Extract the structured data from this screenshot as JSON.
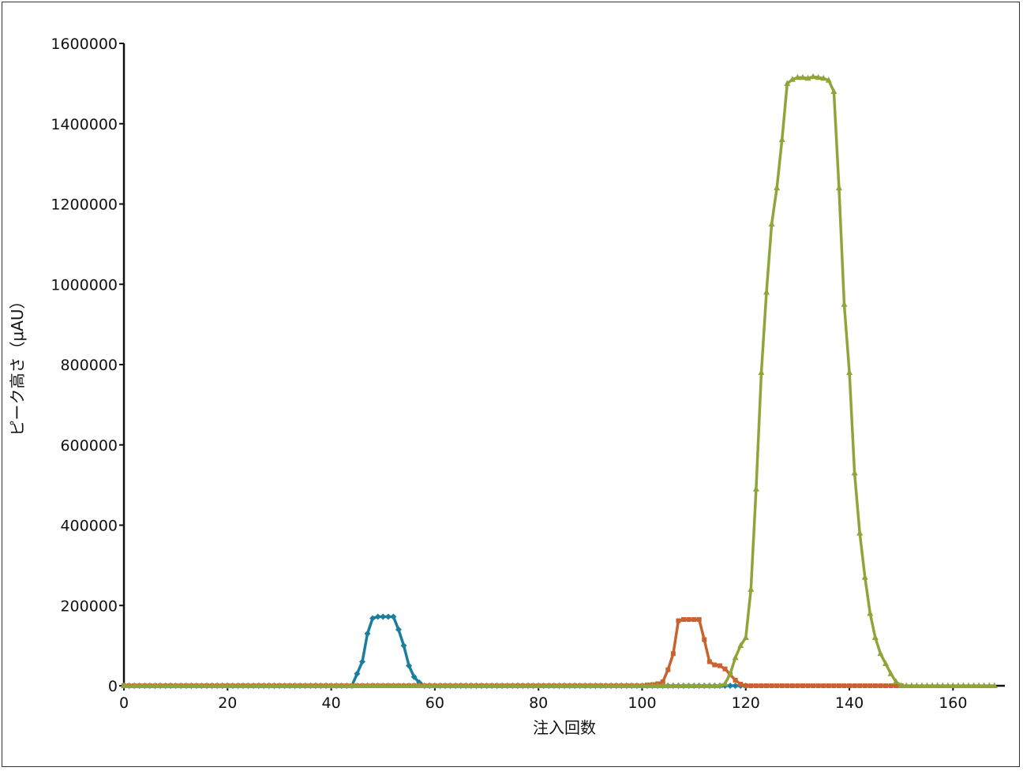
{
  "chart_data": {
    "type": "line",
    "xlabel": "注入回数",
    "ylabel": "ピーク高さ（μAU）",
    "xlim": [
      0,
      170
    ],
    "ylim": [
      0,
      1600000
    ],
    "xticks": [
      0,
      20,
      40,
      60,
      80,
      100,
      120,
      140,
      160
    ],
    "yticks": [
      0,
      200000,
      400000,
      600000,
      800000,
      1000000,
      1200000,
      1400000,
      1600000
    ],
    "grid": false,
    "legend": "none",
    "series": [
      {
        "color": "#1a7f9c",
        "marker": "diamond",
        "points": [
          [
            0,
            0
          ],
          [
            44,
            0
          ],
          [
            45,
            30000
          ],
          [
            46,
            60000
          ],
          [
            47,
            130000
          ],
          [
            48,
            168000
          ],
          [
            49,
            172000
          ],
          [
            50,
            172000
          ],
          [
            51,
            172000
          ],
          [
            52,
            172000
          ],
          [
            53,
            140000
          ],
          [
            54,
            100000
          ],
          [
            55,
            50000
          ],
          [
            56,
            22000
          ],
          [
            57,
            8000
          ],
          [
            58,
            0
          ],
          [
            60,
            0
          ],
          [
            116,
            0
          ],
          [
            117,
            0
          ],
          [
            118,
            0
          ],
          [
            119,
            0
          ],
          [
            120,
            0
          ]
        ]
      },
      {
        "color": "#c8622f",
        "marker": "square",
        "points": [
          [
            0,
            0
          ],
          [
            100,
            0
          ],
          [
            101,
            2000
          ],
          [
            102,
            3000
          ],
          [
            103,
            5000
          ],
          [
            104,
            10000
          ],
          [
            105,
            40000
          ],
          [
            106,
            80000
          ],
          [
            107,
            162000
          ],
          [
            108,
            165000
          ],
          [
            109,
            165000
          ],
          [
            110,
            165000
          ],
          [
            111,
            165000
          ],
          [
            112,
            115000
          ],
          [
            113,
            60000
          ],
          [
            114,
            52000
          ],
          [
            115,
            50000
          ],
          [
            116,
            42000
          ],
          [
            117,
            28000
          ],
          [
            118,
            14000
          ],
          [
            119,
            4000
          ],
          [
            120,
            0
          ],
          [
            150,
            0
          ]
        ]
      },
      {
        "color": "#8fa53a",
        "marker": "triangle",
        "points": [
          [
            0,
            0
          ],
          [
            115,
            0
          ],
          [
            116,
            5000
          ],
          [
            117,
            30000
          ],
          [
            118,
            70000
          ],
          [
            119,
            100000
          ],
          [
            120,
            120000
          ],
          [
            121,
            240000
          ],
          [
            122,
            490000
          ],
          [
            123,
            780000
          ],
          [
            124,
            980000
          ],
          [
            125,
            1150000
          ],
          [
            126,
            1240000
          ],
          [
            127,
            1360000
          ],
          [
            128,
            1500000
          ],
          [
            129,
            1510000
          ],
          [
            130,
            1515000
          ],
          [
            131,
            1515000
          ],
          [
            132,
            1513000
          ],
          [
            133,
            1517000
          ],
          [
            134,
            1515000
          ],
          [
            135,
            1513000
          ],
          [
            136,
            1508000
          ],
          [
            137,
            1480000
          ],
          [
            138,
            1240000
          ],
          [
            139,
            950000
          ],
          [
            140,
            780000
          ],
          [
            141,
            530000
          ],
          [
            142,
            380000
          ],
          [
            143,
            270000
          ],
          [
            144,
            180000
          ],
          [
            145,
            120000
          ],
          [
            146,
            80000
          ],
          [
            147,
            55000
          ],
          [
            148,
            30000
          ],
          [
            149,
            10000
          ],
          [
            150,
            0
          ],
          [
            151,
            0
          ],
          [
            168,
            0
          ]
        ]
      }
    ]
  }
}
